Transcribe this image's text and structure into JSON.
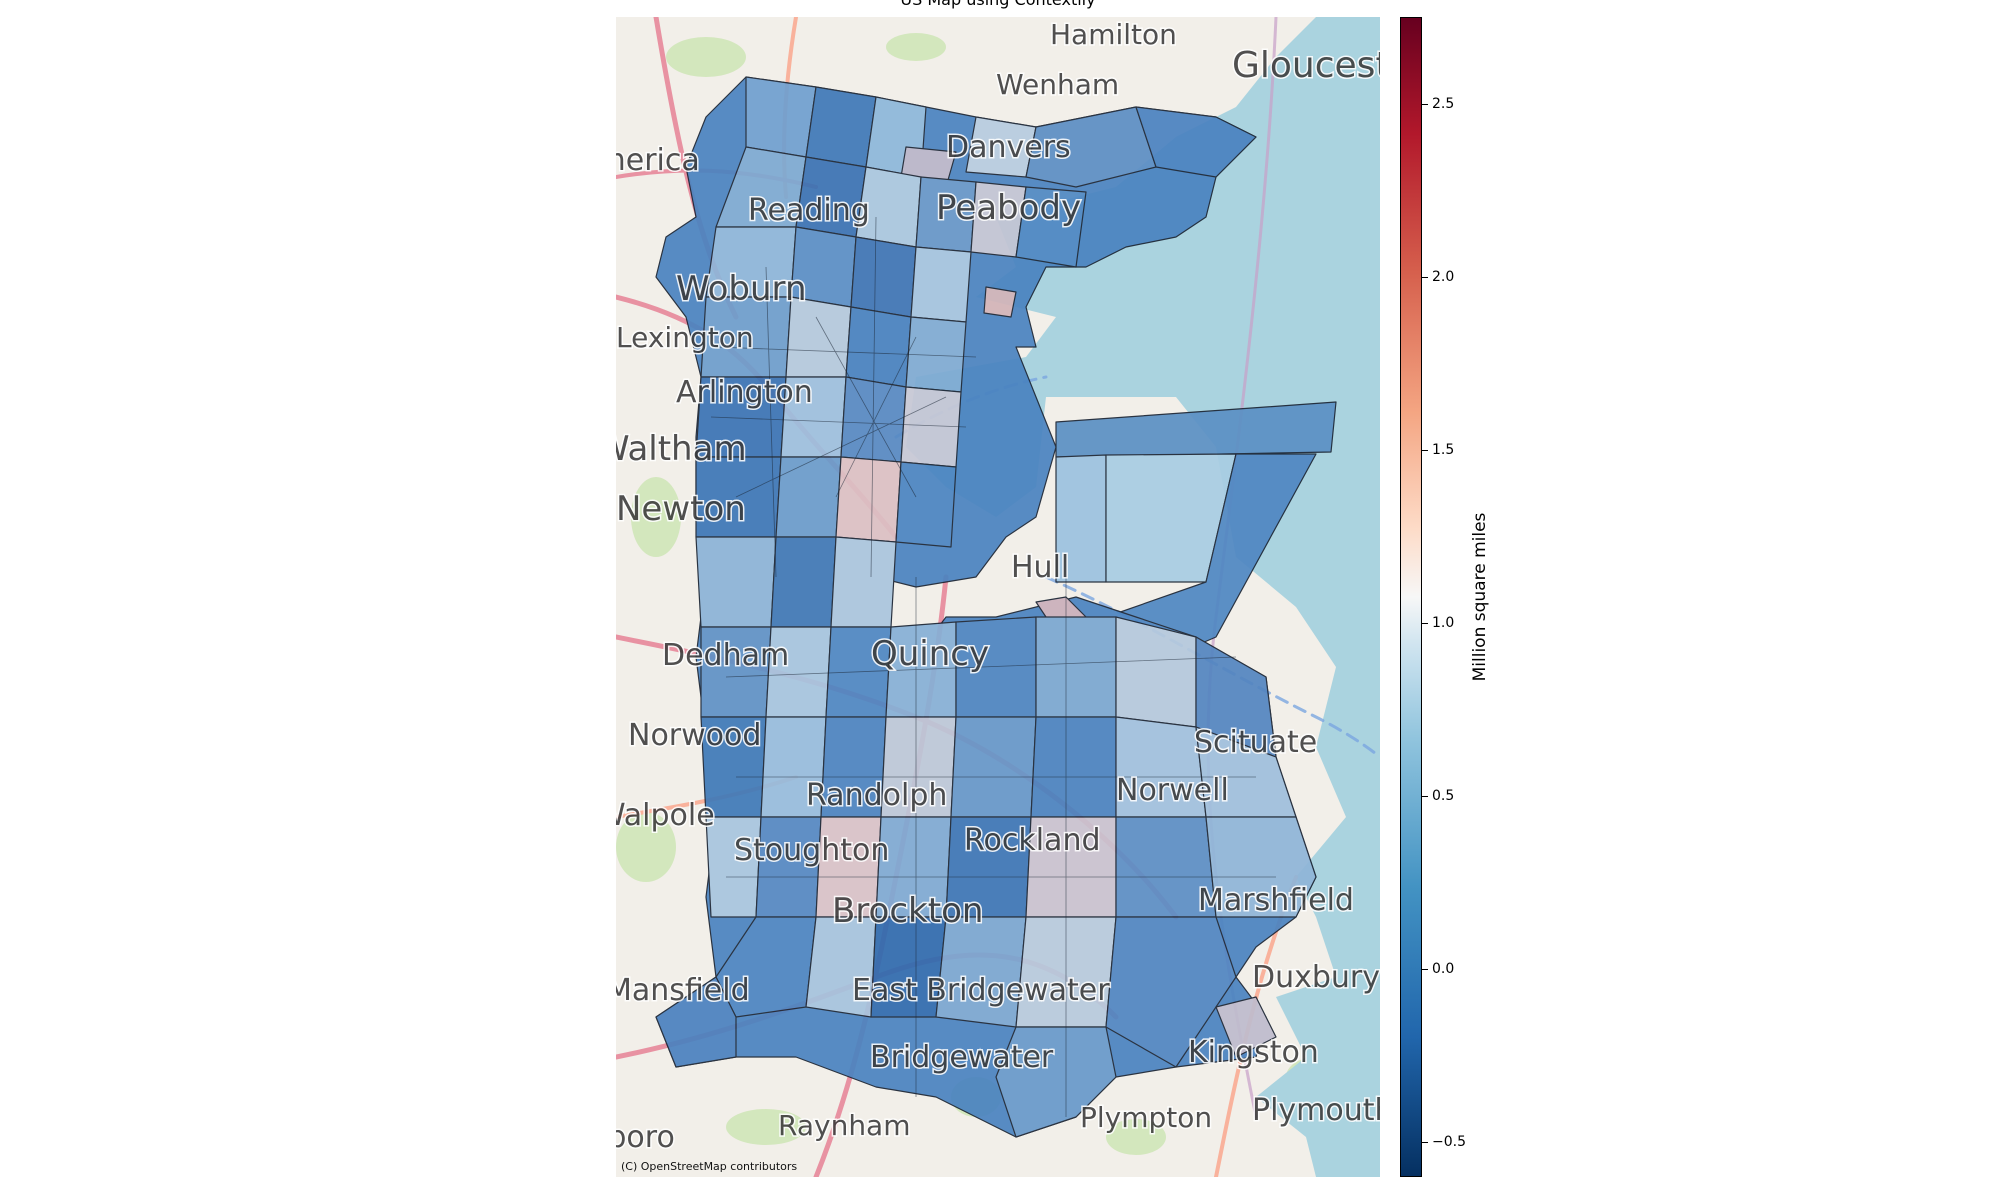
{
  "title": "US Map using Contextily",
  "attribution": "(C) OpenStreetMap contributors",
  "colorbar": {
    "label": "Million square miles",
    "colormap": "RdBu_r",
    "range": [
      -0.6,
      2.75
    ],
    "ticks": [
      "−0.5",
      "0.0",
      "0.5",
      "1.0",
      "1.5",
      "2.0",
      "2.5"
    ],
    "tick_values": [
      -0.5,
      0.0,
      0.5,
      1.0,
      1.5,
      2.0,
      2.5
    ]
  },
  "basemap": {
    "source": "OpenStreetMap",
    "place_labels": [
      "Hamilton",
      "Gloucester",
      "Wenham",
      "Danvers",
      "America",
      "Reading",
      "Peabody",
      "Woburn",
      "Lexington",
      "Arlington",
      "Waltham",
      "Newton",
      "Hull",
      "Dedham",
      "Quincy",
      "Norwood",
      "Scituate",
      "Walpole",
      "Randolph",
      "Norwell",
      "Stoughton",
      "Rockland",
      "Marshfield",
      "Brockton",
      "Duxbury",
      "Mansfield",
      "East Bridgewater",
      "Kingston",
      "Bridgewater",
      "Plympton",
      "Plymouth",
      "Raynham",
      "Foxboro"
    ]
  },
  "colors": {
    "ocean": "#aad3df",
    "land": "#f2efe9",
    "road_major": "#e892a2",
    "road_minor": "#f9b29c",
    "tract_dominant": "#3f7bbd"
  }
}
